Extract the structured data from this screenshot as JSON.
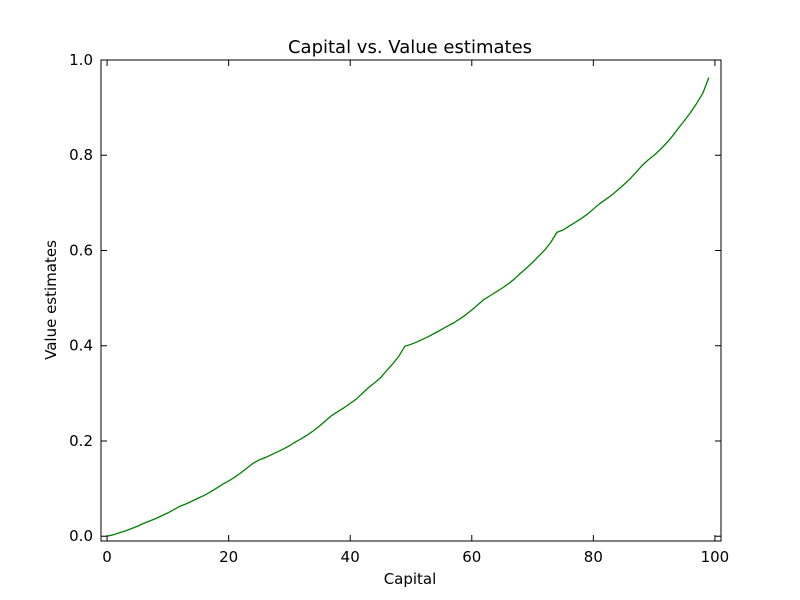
{
  "chart_data": {
    "type": "line",
    "title": "Capital vs. Value estimates",
    "xlabel": "Capital",
    "ylabel": "Value estimates",
    "xlim": [
      -1,
      101
    ],
    "ylim": [
      -0.01,
      1.0
    ],
    "xticks": [
      0,
      20,
      40,
      60,
      80,
      100
    ],
    "xtick_labels": [
      "0",
      "20",
      "40",
      "60",
      "80",
      "100"
    ],
    "yticks": [
      0.0,
      0.2,
      0.4,
      0.6,
      0.8,
      1.0
    ],
    "ytick_labels": [
      "0.0",
      "0.2",
      "0.4",
      "0.6",
      "0.8",
      "1.0"
    ],
    "grid": false,
    "colors": {
      "line": "#008000",
      "axes": "#000000",
      "background": "#ffffff"
    },
    "series": [
      {
        "x": [
          0,
          1,
          2,
          3,
          4,
          5,
          6,
          7,
          8,
          9,
          10,
          11,
          12,
          13,
          14,
          15,
          16,
          17,
          18,
          19,
          20,
          21,
          22,
          23,
          24,
          25,
          26,
          27,
          28,
          29,
          30,
          31,
          32,
          33,
          34,
          35,
          36,
          37,
          38,
          39,
          40,
          41,
          42,
          43,
          44,
          45,
          46,
          47,
          48,
          49,
          50,
          51,
          52,
          53,
          54,
          55,
          56,
          57,
          58,
          59,
          60,
          61,
          62,
          63,
          64,
          65,
          66,
          67,
          68,
          69,
          70,
          71,
          72,
          73,
          74,
          75,
          76,
          77,
          78,
          79,
          80,
          81,
          82,
          83,
          84,
          85,
          86,
          87,
          88,
          89,
          90,
          91,
          92,
          93,
          94,
          95,
          96,
          97,
          98,
          99
        ],
        "values": [
          0.0,
          0.003,
          0.007,
          0.011,
          0.016,
          0.021,
          0.027,
          0.032,
          0.037,
          0.043,
          0.049,
          0.056,
          0.063,
          0.068,
          0.074,
          0.08,
          0.086,
          0.093,
          0.101,
          0.109,
          0.116,
          0.124,
          0.133,
          0.143,
          0.153,
          0.16,
          0.165,
          0.171,
          0.177,
          0.183,
          0.19,
          0.198,
          0.205,
          0.213,
          0.222,
          0.232,
          0.243,
          0.254,
          0.262,
          0.27,
          0.279,
          0.288,
          0.3,
          0.312,
          0.322,
          0.333,
          0.348,
          0.362,
          0.378,
          0.399,
          0.403,
          0.408,
          0.414,
          0.42,
          0.427,
          0.434,
          0.441,
          0.448,
          0.456,
          0.465,
          0.475,
          0.486,
          0.497,
          0.505,
          0.513,
          0.521,
          0.53,
          0.54,
          0.552,
          0.563,
          0.575,
          0.588,
          0.601,
          0.617,
          0.638,
          0.643,
          0.651,
          0.659,
          0.667,
          0.676,
          0.687,
          0.698,
          0.707,
          0.716,
          0.727,
          0.738,
          0.75,
          0.764,
          0.778,
          0.79,
          0.8,
          0.812,
          0.825,
          0.84,
          0.857,
          0.873,
          0.89,
          0.909,
          0.93,
          0.963
        ]
      }
    ]
  }
}
